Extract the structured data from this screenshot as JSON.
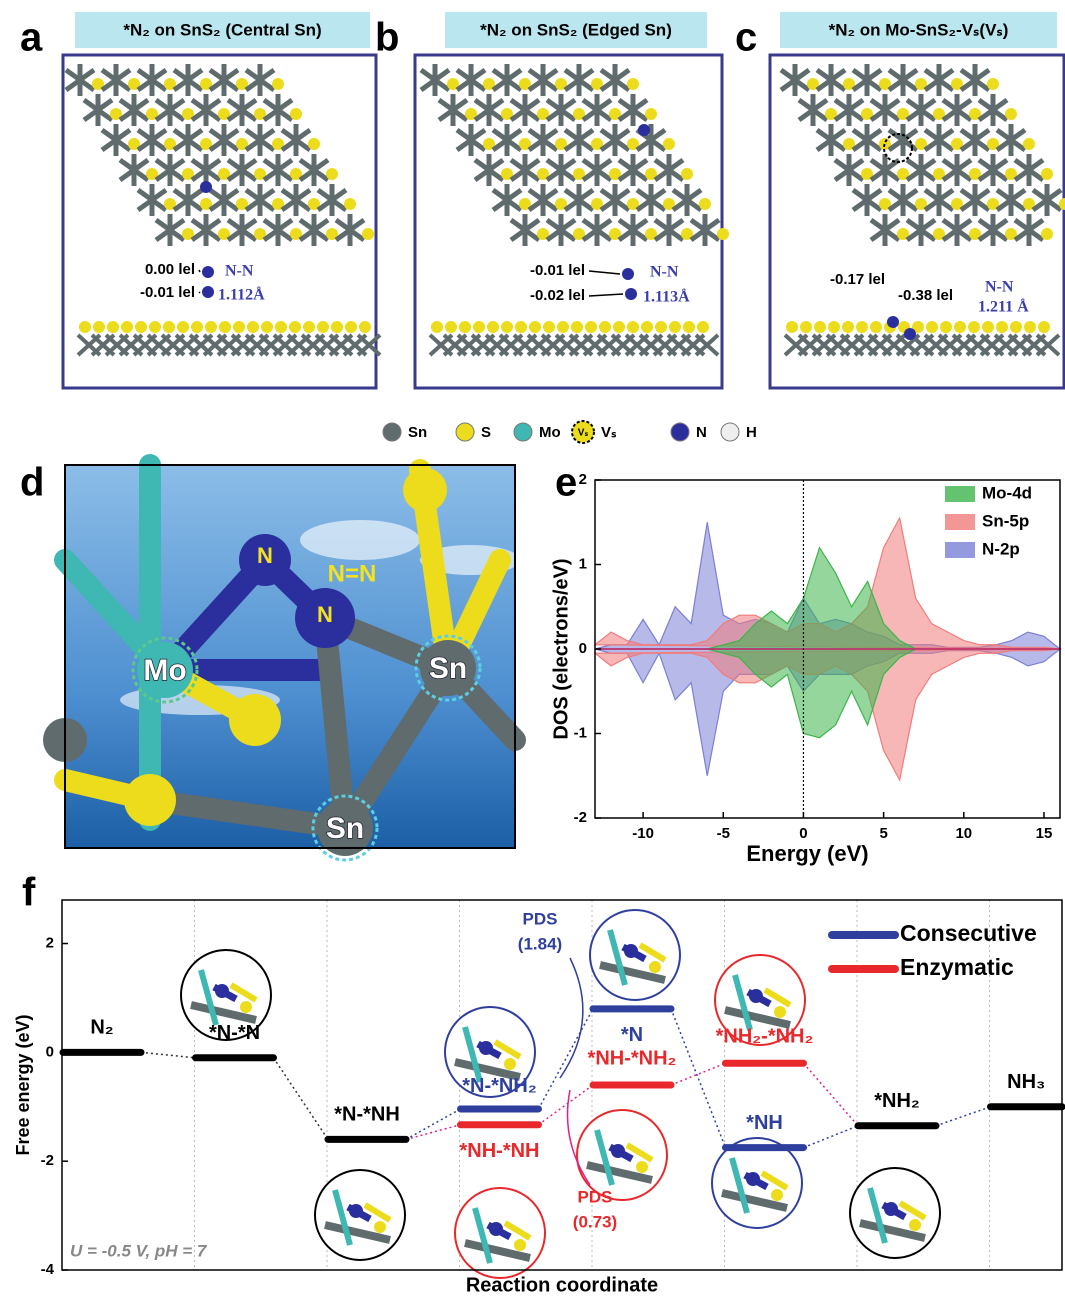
{
  "panels": [
    {
      "letter": "a",
      "title": "*N₂ on SnS₂ (Central Sn)",
      "charges": [
        "0.00 lel",
        "-0.01 lel"
      ],
      "bond": "N-N",
      "length": "1.112Å"
    },
    {
      "letter": "b",
      "title": "*N₂ on SnS₂ (Edged Sn)",
      "charges": [
        "-0.01 lel",
        "-0.02 lel"
      ],
      "bond": "N-N",
      "length": "1.113Å"
    },
    {
      "letter": "c",
      "title": "*N₂ on Mo-SnS₂-Vₛ(Vₛ)",
      "charges": [
        "-0.17 lel",
        "-0.38 lel"
      ],
      "bond": "N-N",
      "length": "1.211 Å"
    }
  ],
  "legend": [
    {
      "label": "Sn",
      "color": "#5f6b6d"
    },
    {
      "label": "S",
      "color": "#ecdc1c"
    },
    {
      "label": "Mo",
      "color": "#3fb7b3"
    },
    {
      "label": "Vₛ",
      "color": "#ecdc1c"
    },
    {
      "label": "N",
      "color": "#2b2f9e"
    },
    {
      "label": "H",
      "color": "#eeeeee"
    }
  ],
  "panel_d": {
    "letter": "d",
    "labels": [
      "Mo",
      "N",
      "N",
      "N=N",
      "Sn",
      "Sn"
    ]
  },
  "chart_data": [
    {
      "letter": "e",
      "type": "area",
      "x": [
        -13,
        -12,
        -11,
        -10,
        -9,
        -8,
        -7,
        -6,
        -5,
        -4,
        -3,
        -2,
        -1,
        0,
        1,
        2,
        3,
        4,
        5,
        6,
        7,
        8,
        9,
        10,
        11,
        12,
        13,
        14,
        15,
        16
      ],
      "series": [
        {
          "name": "Mo-4d",
          "color": "#3cb44b",
          "values": [
            0,
            0,
            0,
            0,
            0,
            0,
            0,
            0,
            0.05,
            0.1,
            0.3,
            0.45,
            0.3,
            0.6,
            1.2,
            0.9,
            0.5,
            0.8,
            0.3,
            0.1,
            0,
            0,
            0,
            0,
            0,
            0,
            0,
            0,
            0,
            0
          ],
          "values_down": [
            0,
            0,
            0,
            0,
            0,
            0,
            0,
            0,
            -0.05,
            -0.1,
            -0.3,
            -0.45,
            -0.3,
            -1.0,
            -1.05,
            -0.9,
            -0.5,
            -0.9,
            -0.3,
            -0.1,
            0,
            0,
            0,
            0,
            0,
            0,
            0,
            0,
            0,
            0
          ]
        },
        {
          "name": "Sn-5p",
          "color": "#f07c7c",
          "values": [
            0.05,
            0.2,
            0.1,
            0.05,
            0.05,
            0.05,
            0.05,
            0.1,
            0.3,
            0.4,
            0.4,
            0.3,
            0.2,
            0.3,
            0.3,
            0.2,
            0.3,
            0.5,
            1.2,
            1.55,
            0.6,
            0.3,
            0.2,
            0.1,
            0.05,
            0.05,
            0.02,
            0.02,
            0.02,
            0
          ],
          "values_down": [
            -0.05,
            -0.2,
            -0.1,
            -0.05,
            -0.05,
            -0.05,
            -0.05,
            -0.1,
            -0.3,
            -0.4,
            -0.4,
            -0.3,
            -0.2,
            -0.3,
            -0.3,
            -0.2,
            -0.3,
            -0.5,
            -1.2,
            -1.55,
            -0.6,
            -0.3,
            -0.2,
            -0.1,
            -0.05,
            -0.05,
            -0.02,
            -0.02,
            -0.02,
            0
          ]
        },
        {
          "name": "N-2p",
          "color": "#7b7fd6",
          "values": [
            0,
            0.05,
            0.05,
            0.35,
            0.05,
            0.5,
            0.3,
            1.5,
            0.4,
            0.3,
            0.35,
            0.3,
            0.2,
            0.6,
            0.3,
            0.35,
            0.3,
            0.2,
            0.15,
            0.05,
            0.05,
            0.05,
            0.02,
            0.02,
            0.02,
            0.05,
            0.1,
            0.2,
            0.15,
            0
          ],
          "values_down": [
            0,
            -0.05,
            -0.05,
            -0.4,
            -0.05,
            -0.6,
            -0.4,
            -1.5,
            -0.5,
            -0.3,
            -0.3,
            -0.3,
            -0.2,
            -0.5,
            -0.3,
            -0.3,
            -0.3,
            -0.2,
            -0.15,
            -0.05,
            -0.05,
            -0.05,
            -0.02,
            -0.02,
            -0.02,
            -0.05,
            -0.1,
            -0.2,
            -0.15,
            0
          ]
        }
      ],
      "xlim": [
        -13,
        16
      ],
      "ylim": [
        -2,
        2
      ],
      "xticks": [
        -10,
        -5,
        0,
        5,
        10,
        15
      ],
      "yticks": [
        -2,
        -1,
        0,
        1,
        2
      ],
      "xlabel": "Energy (eV)",
      "ylabel": "DOS (electrons/eV)",
      "legend": "upper right",
      "vline": 0
    },
    {
      "letter": "f",
      "type": "level",
      "shared_values": [
        0,
        -0.1,
        -1.6,
        null,
        null,
        null,
        -1.35,
        -1.0
      ],
      "shared_labels": [
        "N₂",
        "*N-*N",
        "*N-*NH",
        null,
        null,
        null,
        "*NH₂",
        "NH₃"
      ],
      "shared_color": "#000000",
      "series": [
        {
          "name": "Consecutive",
          "color": "#2e3f9e",
          "values": [
            null,
            null,
            null,
            -1.04,
            0.8,
            -1.75,
            null,
            null
          ],
          "labels": [
            null,
            null,
            null,
            "*N-*NH₂",
            "*N",
            "*NH",
            null,
            null
          ]
        },
        {
          "name": "Enzymatic",
          "color": "#e8282b",
          "values": [
            null,
            null,
            null,
            -1.33,
            -0.6,
            -0.2,
            null,
            null
          ],
          "labels": [
            null,
            null,
            null,
            "*NH-*NH",
            "*NH-*NH₂",
            "*NH₂-*NH₂",
            null,
            null
          ]
        }
      ],
      "ylim": [
        -4,
        2.8
      ],
      "yticks": [
        -4,
        -2,
        0,
        2
      ],
      "xlabel": "Reaction coordinate",
      "ylabel": "Free energy (eV)",
      "annotations": [
        "PDS",
        "(1.84)",
        "PDS",
        "(0.73)",
        "U = -0.5 V, pH = 7"
      ]
    }
  ]
}
